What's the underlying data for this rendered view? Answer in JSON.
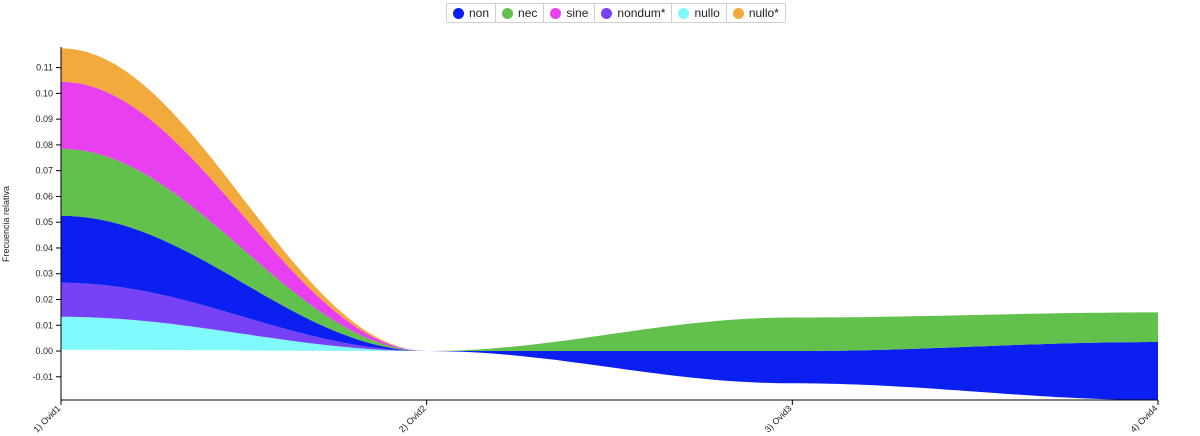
{
  "chart_data": {
    "type": "area",
    "ylabel": "Frecuencia relativa",
    "xlabel": "",
    "categories": [
      "1) Ovid1",
      "2) Ovid2",
      "3) Ovid3",
      "4) Ovid4"
    ],
    "ylim": [
      -0.019,
      0.118
    ],
    "yticks": [
      -0.01,
      0.0,
      0.01,
      0.02,
      0.03,
      0.04,
      0.05,
      0.06,
      0.07,
      0.08,
      0.09,
      0.1,
      0.11
    ],
    "ytick_labels": [
      "-0.01",
      "0.00",
      "0.01",
      "0.02",
      "0.03",
      "0.04",
      "0.05",
      "0.06",
      "0.07",
      "0.08",
      "0.09",
      "0.10",
      "0.11"
    ],
    "legend_position": "top-center",
    "stacking": "streamgraph",
    "series": [
      {
        "name": "nullo",
        "color": "#7ff9fb",
        "values": [
          0.0128,
          0.0,
          0.0,
          0.0
        ]
      },
      {
        "name": "nondum*",
        "color": "#7742f5",
        "values": [
          0.0132,
          0.0,
          0.0,
          0.0
        ]
      },
      {
        "name": "non",
        "color": "#0a1ff0",
        "values": [
          0.026,
          0.0,
          0.0125,
          0.0225
        ]
      },
      {
        "name": "nec",
        "color": "#62c04c",
        "values": [
          0.026,
          0.0,
          0.013,
          0.0115
        ]
      },
      {
        "name": "sine",
        "color": "#e83ff0",
        "values": [
          0.026,
          0.0,
          0.0,
          0.0
        ]
      },
      {
        "name": "nullo*",
        "color": "#f2aa3c",
        "values": [
          0.013,
          0.0,
          0.0,
          0.0
        ]
      }
    ],
    "baseline": [
      0.0005,
      0.0,
      -0.0125,
      -0.019
    ],
    "legend": [
      {
        "name": "non",
        "color": "#0a1ff0"
      },
      {
        "name": "nec",
        "color": "#62c04c"
      },
      {
        "name": "sine",
        "color": "#e83ff0"
      },
      {
        "name": "nondum*",
        "color": "#7742f5"
      },
      {
        "name": "nullo",
        "color": "#7ff9fb"
      },
      {
        "name": "nullo*",
        "color": "#f2aa3c"
      }
    ]
  }
}
